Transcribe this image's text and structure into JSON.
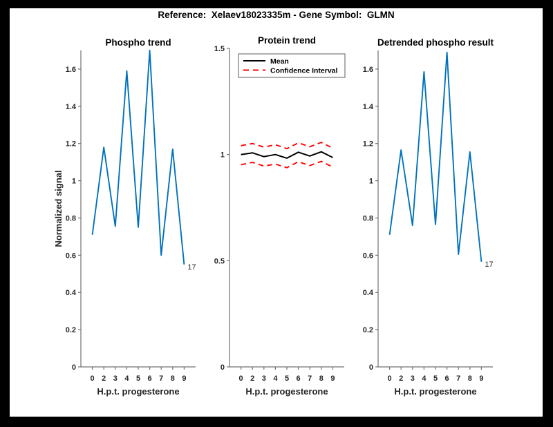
{
  "figure_title": "Reference:  Xelaev18023335m - Gene Symbol:  GLMN",
  "colors": {
    "page_background": "#000000",
    "figure_background": "#ffffff",
    "phospho_line": "#0072BD",
    "mean_line": "#000000",
    "confidence_line": "#FF0000",
    "axis_line": "#707070",
    "tick_label": "#262626",
    "title_text": "#000000"
  },
  "chart_data": [
    {
      "type": "line",
      "name": "phospho-trend",
      "title": "Phospho trend",
      "xlabel": "H.p.t. progesterone",
      "ylabel": "Normalized signal",
      "x_tick_labels": [
        "0",
        "2",
        "3",
        "4",
        "5",
        "6",
        "7",
        "8",
        "9"
      ],
      "y_ticks": [
        0,
        0.2,
        0.4,
        0.6,
        0.8,
        1,
        1.2,
        1.4,
        1.6
      ],
      "y_tick_labels": [
        "0",
        "0.2",
        "0.4",
        "0.6",
        "0.8",
        "1",
        "1.2",
        "1.4",
        "1.6"
      ],
      "ylim": [
        0,
        1.7
      ],
      "grid": false,
      "legend": null,
      "series": [
        {
          "name": "phospho",
          "color": "#0072BD",
          "style": "solid",
          "width": 1.9,
          "values": [
            0.71,
            1.18,
            0.755,
            1.59,
            0.75,
            1.7,
            0.6,
            1.17,
            0.55
          ]
        }
      ],
      "end_annotation": "17"
    },
    {
      "type": "line",
      "name": "protein-trend",
      "title": "Protein trend",
      "xlabel": "H.p.t. progesterone",
      "ylabel": null,
      "x_tick_labels": [
        "0",
        "2",
        "3",
        "4",
        "5",
        "6",
        "7",
        "8",
        "9"
      ],
      "y_ticks": [
        0,
        0.5,
        1,
        1.5
      ],
      "y_tick_labels": [
        "0",
        "0.5",
        "1",
        "1.5"
      ],
      "ylim": [
        0,
        1.5
      ],
      "grid": false,
      "legend": {
        "position": "upper-left",
        "entries": [
          {
            "label": "Mean",
            "color": "#000000",
            "style": "solid"
          },
          {
            "label": "Confidence Interval",
            "color": "#FF0000",
            "style": "dashed"
          }
        ]
      },
      "series": [
        {
          "name": "mean",
          "color": "#000000",
          "style": "solid",
          "width": 2,
          "values": [
            1.0,
            1.008,
            0.99,
            1.0,
            0.983,
            1.011,
            0.993,
            1.013,
            0.986
          ]
        },
        {
          "name": "ci-upper",
          "color": "#FF0000",
          "style": "dashed",
          "width": 1.9,
          "values": [
            1.042,
            1.052,
            1.035,
            1.046,
            1.028,
            1.055,
            1.037,
            1.057,
            1.03
          ]
        },
        {
          "name": "ci-lower",
          "color": "#FF0000",
          "style": "dashed",
          "width": 1.9,
          "values": [
            0.952,
            0.963,
            0.946,
            0.955,
            0.938,
            0.966,
            0.948,
            0.968,
            0.941
          ]
        }
      ],
      "end_annotation": null
    },
    {
      "type": "line",
      "name": "detrended-phospho-result",
      "title": "Detrended phospho result",
      "xlabel": "H.p.t. progesterone",
      "ylabel": null,
      "x_tick_labels": [
        "0",
        "2",
        "3",
        "4",
        "5",
        "6",
        "7",
        "8",
        "9"
      ],
      "y_ticks": [
        0,
        0.2,
        0.4,
        0.6,
        0.8,
        1,
        1.2,
        1.4,
        1.6
      ],
      "y_tick_labels": [
        "0",
        "0.2",
        "0.4",
        "0.6",
        "0.8",
        "1",
        "1.2",
        "1.4",
        "1.6"
      ],
      "ylim": [
        0,
        1.7
      ],
      "grid": false,
      "legend": null,
      "series": [
        {
          "name": "detrended-phospho",
          "color": "#0072BD",
          "style": "solid",
          "width": 1.9,
          "values": [
            0.71,
            1.165,
            0.76,
            1.585,
            0.765,
            1.69,
            0.605,
            1.155,
            0.565
          ]
        }
      ],
      "end_annotation": "17"
    }
  ]
}
